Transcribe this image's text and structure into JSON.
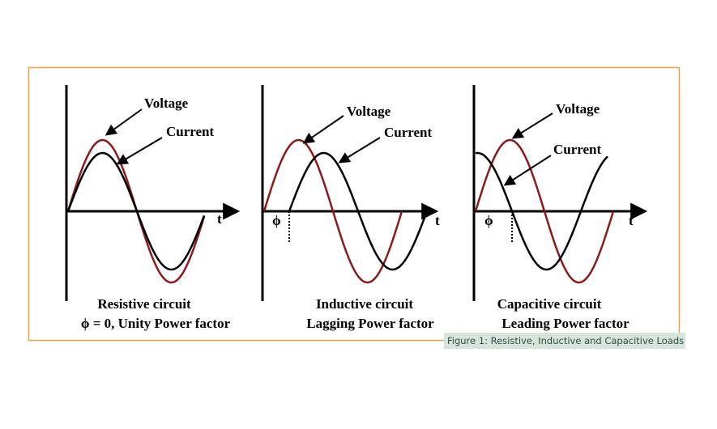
{
  "panels": [
    {
      "voltage_label": "Voltage",
      "current_label": "Current",
      "axis_label": "t",
      "title_lines": [
        "Resistive circuit",
        "ϕ = 0, Unity Power factor"
      ]
    },
    {
      "voltage_label": "Voltage",
      "current_label": "Current",
      "axis_label": "t",
      "phase_label": "ϕ",
      "title_lines": [
        "Inductive circuit",
        "Lagging Power factor"
      ]
    },
    {
      "voltage_label": "Voltage",
      "current_label": "Current",
      "axis_label": "t",
      "phase_label": "ϕ",
      "title_lines": [
        "Capacitive circuit",
        "Leading Power factor"
      ]
    }
  ],
  "caption": "Figure 1: Resistive, Inductive and Capacitive Loads"
}
